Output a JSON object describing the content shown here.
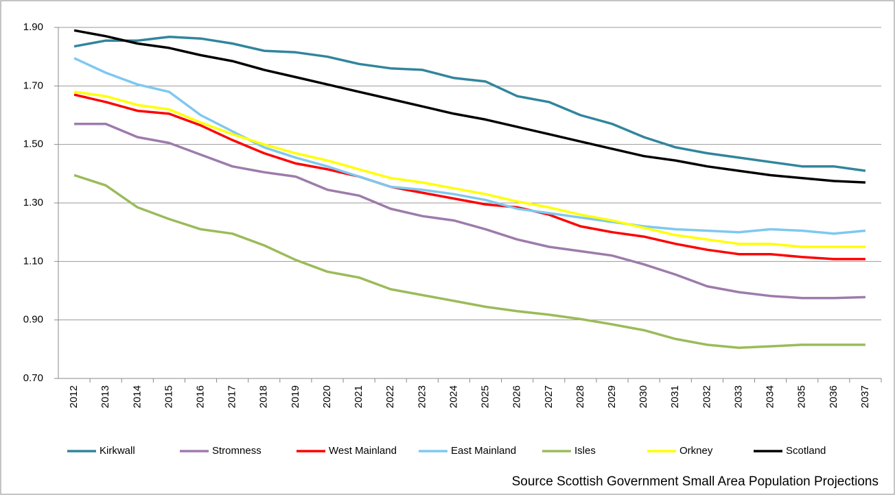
{
  "chart_data": {
    "type": "line",
    "categories": [
      "2012",
      "2013",
      "2014",
      "2015",
      "2016",
      "2017",
      "2018",
      "2019",
      "2020",
      "2021",
      "2022",
      "2023",
      "2024",
      "2025",
      "2026",
      "2027",
      "2028",
      "2029",
      "2030",
      "2031",
      "2032",
      "2033",
      "2034",
      "2035",
      "2036",
      "2037"
    ],
    "series": [
      {
        "name": "Kirkwall",
        "color": "#31859c",
        "values": [
          1.835,
          1.855,
          1.855,
          1.868,
          1.862,
          1.845,
          1.82,
          1.815,
          1.8,
          1.775,
          1.76,
          1.755,
          1.727,
          1.715,
          1.665,
          1.645,
          1.6,
          1.57,
          1.525,
          1.49,
          1.47,
          1.455,
          1.44,
          1.425,
          1.425,
          1.41
        ]
      },
      {
        "name": "Stromness",
        "color": "#9e7bab",
        "values": [
          1.57,
          1.57,
          1.525,
          1.505,
          1.465,
          1.425,
          1.405,
          1.39,
          1.345,
          1.325,
          1.28,
          1.255,
          1.24,
          1.21,
          1.175,
          1.15,
          1.135,
          1.12,
          1.09,
          1.055,
          1.015,
          0.995,
          0.982,
          0.975,
          0.975,
          0.978
        ]
      },
      {
        "name": "West Mainland",
        "color": "#ff0000",
        "values": [
          1.67,
          1.645,
          1.615,
          1.605,
          1.565,
          1.515,
          1.47,
          1.435,
          1.415,
          1.39,
          1.355,
          1.335,
          1.315,
          1.295,
          1.285,
          1.26,
          1.22,
          1.2,
          1.185,
          1.16,
          1.14,
          1.125,
          1.125,
          1.115,
          1.108,
          1.108
        ]
      },
      {
        "name": "East Mainland",
        "color": "#7ec8f0",
        "values": [
          1.795,
          1.745,
          1.705,
          1.68,
          1.6,
          1.545,
          1.49,
          1.455,
          1.425,
          1.39,
          1.355,
          1.345,
          1.33,
          1.31,
          1.28,
          1.265,
          1.25,
          1.235,
          1.22,
          1.21,
          1.205,
          1.2,
          1.21,
          1.205,
          1.195,
          1.205
        ]
      },
      {
        "name": "Isles",
        "color": "#9bbb59",
        "values": [
          1.395,
          1.36,
          1.285,
          1.245,
          1.21,
          1.195,
          1.155,
          1.105,
          1.065,
          1.045,
          1.005,
          0.985,
          0.965,
          0.945,
          0.93,
          0.918,
          0.903,
          0.885,
          0.865,
          0.835,
          0.815,
          0.805,
          0.81,
          0.815,
          0.815,
          0.815
        ]
      },
      {
        "name": "Orkney",
        "color": "#ffff00",
        "values": [
          1.68,
          1.665,
          1.635,
          1.62,
          1.575,
          1.535,
          1.5,
          1.47,
          1.445,
          1.415,
          1.385,
          1.37,
          1.35,
          1.33,
          1.305,
          1.285,
          1.26,
          1.24,
          1.215,
          1.19,
          1.175,
          1.16,
          1.16,
          1.15,
          1.15,
          1.15
        ]
      },
      {
        "name": "Scotland",
        "color": "#000000",
        "values": [
          1.89,
          1.87,
          1.845,
          1.83,
          1.805,
          1.785,
          1.755,
          1.73,
          1.705,
          1.68,
          1.655,
          1.63,
          1.605,
          1.585,
          1.56,
          1.535,
          1.51,
          1.485,
          1.46,
          1.445,
          1.425,
          1.41,
          1.395,
          1.385,
          1.375,
          1.37
        ]
      }
    ],
    "ylim": [
      0.7,
      1.9
    ],
    "yticks": [
      {
        "value": 0.7,
        "label": "0.70"
      },
      {
        "value": 0.9,
        "label": "0.90"
      },
      {
        "value": 1.1,
        "label": "1.10"
      },
      {
        "value": 1.3,
        "label": "1.30"
      },
      {
        "value": 1.5,
        "label": "1.50"
      },
      {
        "value": 1.7,
        "label": "1.70"
      },
      {
        "value": 1.9,
        "label": "1.90"
      }
    ],
    "grid": true,
    "legend": "bottom",
    "annotation": "Source Scottish Government Small Area Population Projections"
  }
}
